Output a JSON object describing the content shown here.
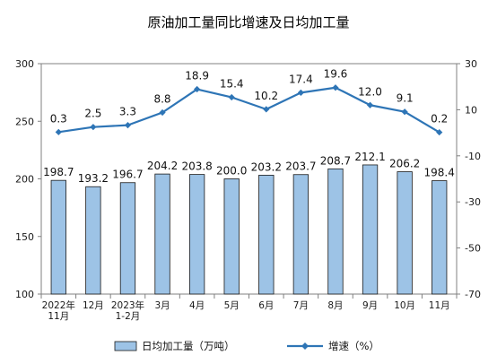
{
  "chart_data": {
    "type": "bar+line",
    "title": "原油加工量同比增速及日均加工量",
    "categories": [
      [
        "2022年",
        "11月"
      ],
      [
        "12月"
      ],
      [
        "2023年",
        "1-2月"
      ],
      [
        "3月"
      ],
      [
        "4月"
      ],
      [
        "5月"
      ],
      [
        "6月"
      ],
      [
        "7月"
      ],
      [
        "8月"
      ],
      [
        "9月"
      ],
      [
        "10月"
      ],
      [
        "11月"
      ]
    ],
    "left_axis": {
      "min": 100,
      "max": 300,
      "ticks": [
        "100",
        "150",
        "200",
        "250",
        "300"
      ]
    },
    "right_axis": {
      "min": -70,
      "max": 30,
      "ticks": [
        "-70",
        "-50",
        "-30",
        "-10",
        "10",
        "30"
      ]
    },
    "series": [
      {
        "name": "日均加工量（万吨）",
        "type": "bar",
        "axis": "left",
        "color": "#9DC3E6",
        "values": [
          198.7,
          193.2,
          196.7,
          204.2,
          203.8,
          200.0,
          203.2,
          203.7,
          208.7,
          212.1,
          206.2,
          198.4
        ],
        "labels": [
          "198.7",
          "193.2",
          "196.7",
          "204.2",
          "203.8",
          "200.0",
          "203.2",
          "203.7",
          "208.7",
          "212.1",
          "206.2",
          "198.4"
        ]
      },
      {
        "name": "增速（%）",
        "type": "line",
        "axis": "right",
        "color": "#2E75B6",
        "values": [
          0.3,
          2.5,
          3.3,
          8.8,
          18.9,
          15.4,
          10.2,
          17.4,
          19.6,
          12.0,
          9.1,
          0.2
        ],
        "labels": [
          "0.3",
          "2.5",
          "3.3",
          "8.8",
          "18.9",
          "15.4",
          "10.2",
          "17.4",
          "19.6",
          "12.0",
          "9.1",
          "0.2"
        ]
      }
    ],
    "legend": {
      "position": "bottom",
      "bar_label": "日均加工量（万吨）",
      "line_label": "增速（%）"
    }
  }
}
